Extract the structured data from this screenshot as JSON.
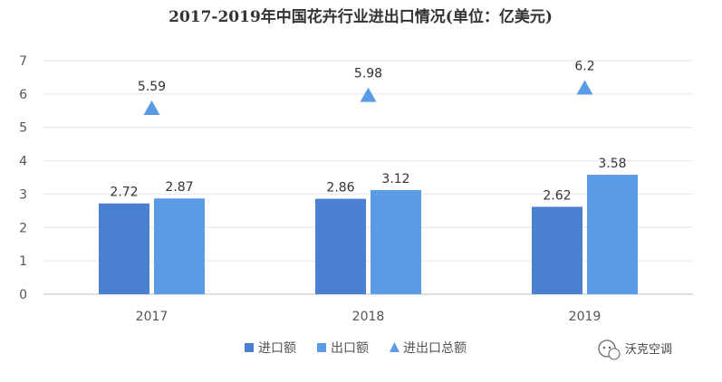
{
  "chart_data": {
    "type": "bar",
    "title": "2017-2019年中国花卉行业进出口情况(单位：亿美元)",
    "categories": [
      "2017",
      "2018",
      "2019"
    ],
    "series": [
      {
        "name": "进口额",
        "kind": "bar",
        "color": "#4a7fd2",
        "values": [
          2.72,
          2.86,
          2.62
        ]
      },
      {
        "name": "出口额",
        "kind": "bar",
        "color": "#5b9be6",
        "values": [
          2.87,
          3.12,
          3.58
        ]
      },
      {
        "name": "进出口总额",
        "kind": "marker",
        "marker": "triangle",
        "color": "#5b9be6",
        "values": [
          5.59,
          5.98,
          6.2
        ]
      }
    ],
    "ylim": [
      0,
      7
    ],
    "yticks": [
      0,
      1,
      2,
      3,
      4,
      5,
      6,
      7
    ],
    "grid": true,
    "legend_position": "bottom-center",
    "data_labels": true
  },
  "watermark": {
    "text": "沃克空调",
    "icon": "wechat-icon"
  }
}
